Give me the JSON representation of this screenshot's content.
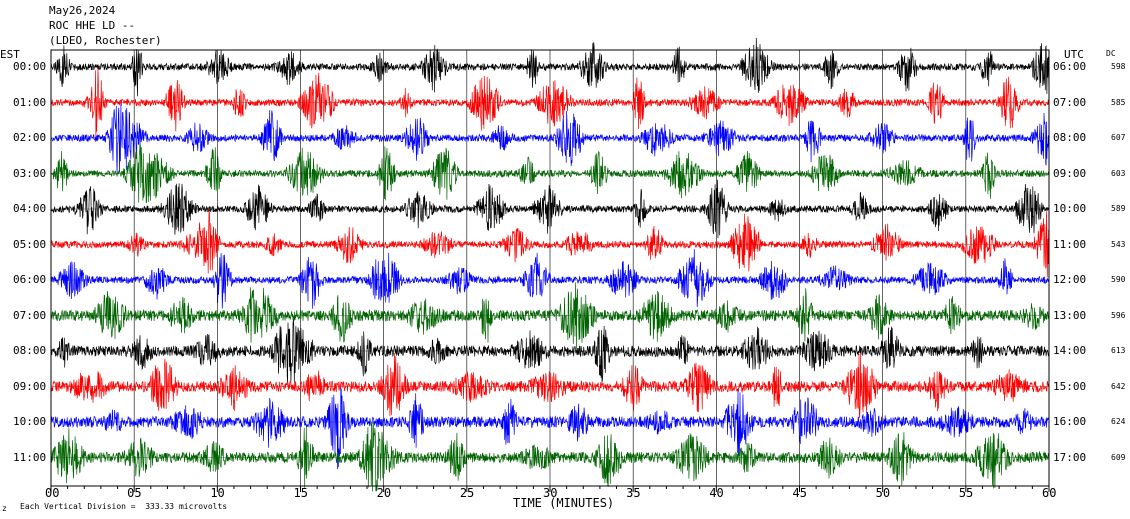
{
  "header": {
    "date": "May26,2024",
    "station": "ROC HHE LD --",
    "network": "(LDEO, Rochester)"
  },
  "left_timezone": "EST",
  "right_timezone": "UTC",
  "dc_header": "DC",
  "footer": {
    "scale_note": "Each Vertical Division =  333.33 microvolts",
    "corner_mark": "z"
  },
  "colors": {
    "trace_cycle": [
      "#000000",
      "#ff0000",
      "#0000ff",
      "#006400"
    ],
    "grid": "#000000"
  },
  "chart_data": {
    "type": "line",
    "title": "",
    "xlabel": "TIME (MINUTES)",
    "xlim": [
      0,
      60
    ],
    "x_ticks": [
      "00",
      "05",
      "10",
      "15",
      "20",
      "25",
      "30",
      "35",
      "40",
      "45",
      "50",
      "55",
      "60"
    ],
    "rows": [
      {
        "est": "00:00",
        "utc": "06:00",
        "dc": "598"
      },
      {
        "est": "01:00",
        "utc": "07:00",
        "dc": "585"
      },
      {
        "est": "02:00",
        "utc": "08:00",
        "dc": "607"
      },
      {
        "est": "03:00",
        "utc": "09:00",
        "dc": "603"
      },
      {
        "est": "04:00",
        "utc": "10:00",
        "dc": "589"
      },
      {
        "est": "05:00",
        "utc": "11:00",
        "dc": "543"
      },
      {
        "est": "06:00",
        "utc": "12:00",
        "dc": "590"
      },
      {
        "est": "07:00",
        "utc": "13:00",
        "dc": "596"
      },
      {
        "est": "08:00",
        "utc": "14:00",
        "dc": "613"
      },
      {
        "est": "09:00",
        "utc": "15:00",
        "dc": "642"
      },
      {
        "est": "10:00",
        "utc": "16:00",
        "dc": "624"
      },
      {
        "est": "11:00",
        "utc": "17:00",
        "dc": "609"
      }
    ]
  }
}
